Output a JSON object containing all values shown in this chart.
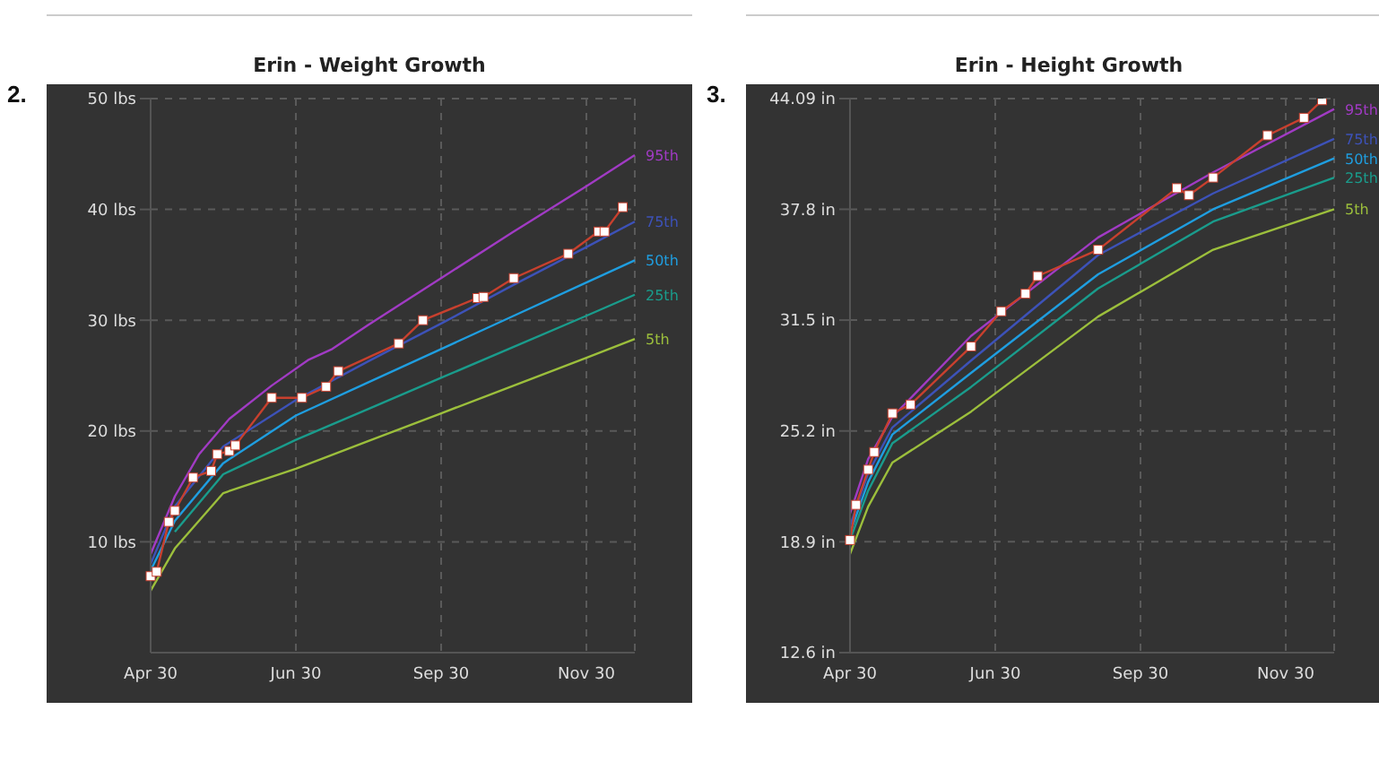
{
  "chart_data": [
    {
      "type": "line",
      "title": "Erin - Weight Growth",
      "annotations": [
        "2."
      ],
      "categories": [
        "Apr 30",
        null,
        null,
        null,
        null,
        null,
        null,
        null,
        null,
        null,
        null,
        null,
        null,
        null,
        null,
        null,
        null,
        null,
        null,
        null,
        null,
        null,
        null,
        null,
        "Jun 30",
        null,
        null,
        null,
        null,
        null,
        null,
        null,
        null,
        null,
        null,
        null,
        null,
        null,
        null,
        null,
        null,
        null,
        null,
        null,
        null,
        null,
        null,
        null,
        "Sep 30",
        null,
        null,
        null,
        null,
        null,
        null,
        null,
        null,
        null,
        null,
        null,
        null,
        null,
        null,
        null,
        null,
        null,
        null,
        null,
        null,
        null,
        null,
        null,
        "Nov 30",
        null,
        null,
        null,
        null,
        null,
        null,
        null,
        null
      ],
      "ylim": [
        0,
        50
      ],
      "yticks": [
        {
          "value": 10,
          "label": "10 lbs"
        },
        {
          "value": 20,
          "label": "20 lbs"
        },
        {
          "value": 30,
          "label": "30 lbs"
        },
        {
          "value": 40,
          "label": "40 lbs"
        },
        {
          "value": 50,
          "label": "50 lbs"
        }
      ],
      "grid": true,
      "line_style": "solid",
      "series": [
        {
          "name": "95th",
          "color": "#a13bc4",
          "marker": "none",
          "values": [
            8.9,
            null,
            null,
            null,
            14.1,
            null,
            null,
            null,
            17.9,
            null,
            null,
            null,
            null,
            21.1,
            null,
            null,
            null,
            null,
            null,
            null,
            24.1,
            null,
            null,
            null,
            null,
            null,
            26.4,
            null,
            null,
            null,
            27.4,
            null,
            null,
            null,
            null,
            null,
            29.6,
            null,
            null,
            null,
            null,
            null,
            null,
            null,
            null,
            null,
            null,
            null,
            33.8,
            null,
            null,
            null,
            null,
            null,
            null,
            null,
            null,
            null,
            null,
            null,
            38.0,
            null,
            null,
            null,
            null,
            null,
            null,
            null,
            null,
            null,
            null,
            null,
            42.1,
            null,
            null,
            null,
            null,
            null,
            null,
            null,
            44.9
          ]
        },
        {
          "name": "75th",
          "color": "#3d52b8",
          "marker": "none",
          "values": [
            8.0,
            null,
            null,
            null,
            13.2,
            null,
            null,
            null,
            null,
            null,
            null,
            null,
            18.6,
            null,
            null,
            null,
            null,
            null,
            null,
            null,
            null,
            null,
            null,
            null,
            22.8,
            null,
            null,
            null,
            null,
            null,
            null,
            null,
            null,
            null,
            null,
            null,
            26.3,
            null,
            null,
            null,
            null,
            null,
            null,
            null,
            null,
            null,
            null,
            null,
            29.7,
            null,
            null,
            null,
            null,
            null,
            null,
            null,
            null,
            null,
            null,
            null,
            33.2,
            null,
            null,
            null,
            null,
            null,
            null,
            null,
            null,
            null,
            null,
            null,
            36.6,
            null,
            null,
            null,
            null,
            null,
            null,
            null,
            38.9
          ]
        },
        {
          "name": "50th",
          "color": "#1f9ee0",
          "marker": "none",
          "values": [
            7.4,
            null,
            null,
            null,
            11.9,
            null,
            null,
            null,
            null,
            null,
            null,
            null,
            17.1,
            null,
            null,
            null,
            null,
            null,
            null,
            null,
            null,
            null,
            null,
            null,
            21.4,
            null,
            null,
            null,
            null,
            null,
            null,
            null,
            null,
            null,
            null,
            null,
            24.4,
            null,
            null,
            null,
            null,
            null,
            null,
            null,
            null,
            null,
            null,
            null,
            27.4,
            null,
            null,
            null,
            null,
            null,
            null,
            null,
            null,
            null,
            null,
            null,
            30.4,
            null,
            null,
            null,
            null,
            null,
            null,
            null,
            null,
            null,
            null,
            null,
            33.4,
            null,
            null,
            null,
            null,
            null,
            null,
            null,
            35.4
          ]
        },
        {
          "name": "25th",
          "color": "#1a9c8c",
          "marker": "none",
          "values": [
            null,
            null,
            null,
            null,
            10.9,
            null,
            null,
            null,
            null,
            null,
            null,
            null,
            16.1,
            null,
            null,
            null,
            null,
            null,
            null,
            null,
            null,
            null,
            null,
            null,
            19.2,
            null,
            null,
            null,
            null,
            null,
            null,
            null,
            null,
            null,
            null,
            null,
            22.0,
            null,
            null,
            null,
            null,
            null,
            null,
            null,
            null,
            null,
            null,
            null,
            24.8,
            null,
            null,
            null,
            null,
            null,
            null,
            null,
            null,
            null,
            null,
            null,
            27.6,
            null,
            null,
            null,
            null,
            null,
            null,
            null,
            null,
            null,
            null,
            null,
            30.4,
            null,
            null,
            null,
            null,
            null,
            null,
            null,
            32.3
          ]
        },
        {
          "name": "5th",
          "color": "#9cbf3c",
          "marker": "none",
          "values": [
            5.6,
            null,
            null,
            null,
            9.4,
            null,
            null,
            null,
            null,
            null,
            null,
            null,
            14.4,
            null,
            null,
            null,
            null,
            null,
            null,
            null,
            null,
            null,
            null,
            null,
            16.6,
            null,
            null,
            null,
            null,
            null,
            null,
            null,
            null,
            null,
            null,
            null,
            19.1,
            null,
            null,
            null,
            null,
            null,
            null,
            null,
            null,
            null,
            null,
            null,
            21.6,
            null,
            null,
            null,
            null,
            null,
            null,
            null,
            null,
            null,
            null,
            null,
            24.1,
            null,
            null,
            null,
            null,
            null,
            null,
            null,
            null,
            null,
            null,
            null,
            26.6,
            null,
            null,
            null,
            null,
            null,
            null,
            null,
            28.3
          ]
        },
        {
          "color": "#c8402e",
          "marker": "square",
          "values": [
            6.9,
            7.3,
            null,
            11.8,
            12.8,
            null,
            null,
            15.8,
            null,
            null,
            16.4,
            17.9,
            null,
            18.2,
            18.7,
            null,
            null,
            null,
            null,
            null,
            23.0,
            null,
            null,
            null,
            null,
            23.0,
            null,
            null,
            null,
            24.0,
            null,
            25.4,
            null,
            null,
            null,
            null,
            null,
            null,
            null,
            null,
            null,
            27.9,
            null,
            null,
            null,
            30.0,
            null,
            null,
            null,
            null,
            null,
            null,
            null,
            null,
            32.0,
            32.1,
            null,
            null,
            null,
            null,
            33.8,
            null,
            null,
            null,
            null,
            null,
            null,
            null,
            null,
            36.0,
            null,
            null,
            null,
            null,
            38.0,
            38.0,
            null,
            null,
            40.2,
            null,
            null
          ]
        }
      ]
    },
    {
      "type": "line",
      "title": "Erin - Height Growth",
      "annotations": [
        "3."
      ],
      "categories": [
        "Apr 30",
        null,
        null,
        null,
        null,
        null,
        null,
        null,
        null,
        null,
        null,
        null,
        null,
        null,
        null,
        null,
        null,
        null,
        null,
        null,
        null,
        null,
        null,
        null,
        "Jun 30",
        null,
        null,
        null,
        null,
        null,
        null,
        null,
        null,
        null,
        null,
        null,
        null,
        null,
        null,
        null,
        null,
        null,
        null,
        null,
        null,
        null,
        null,
        null,
        "Sep 30",
        null,
        null,
        null,
        null,
        null,
        null,
        null,
        null,
        null,
        null,
        null,
        null,
        null,
        null,
        null,
        null,
        null,
        null,
        null,
        null,
        null,
        null,
        null,
        "Nov 30",
        null,
        null,
        null,
        null,
        null,
        null,
        null,
        null
      ],
      "ylim": [
        12.6,
        44.09
      ],
      "yticks": [
        {
          "value": 12.6,
          "label": "12.6 in"
        },
        {
          "value": 18.9,
          "label": "18.9 in"
        },
        {
          "value": 25.2,
          "label": "25.2 in"
        },
        {
          "value": 31.5,
          "label": "31.5 in"
        },
        {
          "value": 37.8,
          "label": "37.8 in"
        },
        {
          "value": 44.09,
          "label": "44.09 in"
        }
      ],
      "grid": true,
      "line_style": "solid",
      "series": [
        {
          "name": "95th",
          "color": "#a13bc4",
          "marker": "none",
          "values": [
            20.5,
            null,
            null,
            23.6,
            null,
            null,
            null,
            26.0,
            null,
            null,
            null,
            null,
            null,
            null,
            null,
            null,
            null,
            null,
            null,
            null,
            30.6,
            null,
            null,
            null,
            null,
            null,
            null,
            null,
            null,
            null,
            null,
            null,
            null,
            null,
            null,
            null,
            null,
            null,
            null,
            null,
            null,
            36.2,
            null,
            null,
            null,
            null,
            null,
            null,
            null,
            null,
            null,
            null,
            null,
            null,
            null,
            null,
            null,
            null,
            null,
            null,
            39.9,
            null,
            null,
            null,
            null,
            null,
            null,
            null,
            null,
            null,
            null,
            null,
            null,
            null,
            null,
            null,
            null,
            null,
            null,
            null,
            43.5
          ]
        },
        {
          "name": "75th",
          "color": "#3d52b8",
          "marker": "none",
          "values": [
            19.8,
            null,
            null,
            22.8,
            null,
            null,
            null,
            25.4,
            null,
            null,
            null,
            null,
            null,
            null,
            null,
            null,
            null,
            null,
            null,
            null,
            29.2,
            null,
            null,
            null,
            null,
            null,
            null,
            null,
            null,
            null,
            null,
            null,
            null,
            null,
            null,
            null,
            null,
            null,
            null,
            null,
            null,
            35.2,
            null,
            null,
            null,
            null,
            null,
            null,
            null,
            null,
            null,
            null,
            null,
            null,
            null,
            null,
            null,
            null,
            null,
            null,
            38.7,
            null,
            null,
            null,
            null,
            null,
            null,
            null,
            null,
            null,
            null,
            null,
            null,
            null,
            null,
            null,
            null,
            null,
            null,
            null,
            41.8
          ]
        },
        {
          "name": "50th",
          "color": "#1f9ee0",
          "marker": "none",
          "values": [
            19.4,
            null,
            null,
            22.3,
            null,
            null,
            null,
            25.0,
            null,
            null,
            null,
            null,
            null,
            null,
            null,
            null,
            null,
            null,
            null,
            null,
            28.5,
            null,
            null,
            null,
            null,
            null,
            null,
            null,
            null,
            null,
            null,
            null,
            null,
            null,
            null,
            null,
            null,
            null,
            null,
            null,
            null,
            34.1,
            null,
            null,
            null,
            null,
            null,
            null,
            null,
            null,
            null,
            null,
            null,
            null,
            null,
            null,
            null,
            null,
            null,
            null,
            37.8,
            null,
            null,
            null,
            null,
            null,
            null,
            null,
            null,
            null,
            null,
            null,
            null,
            null,
            null,
            null,
            null,
            null,
            null,
            null,
            40.7
          ]
        },
        {
          "name": "25th",
          "color": "#1a9c8c",
          "marker": "none",
          "values": [
            19.0,
            null,
            null,
            21.8,
            null,
            null,
            null,
            24.5,
            null,
            null,
            null,
            null,
            null,
            null,
            null,
            null,
            null,
            null,
            null,
            null,
            27.7,
            null,
            null,
            null,
            null,
            null,
            null,
            null,
            null,
            null,
            null,
            null,
            null,
            null,
            null,
            null,
            null,
            null,
            null,
            null,
            null,
            33.3,
            null,
            null,
            null,
            null,
            null,
            null,
            null,
            null,
            null,
            null,
            null,
            null,
            null,
            null,
            null,
            null,
            null,
            null,
            37.1,
            null,
            null,
            null,
            null,
            null,
            null,
            null,
            null,
            null,
            null,
            null,
            null,
            null,
            null,
            null,
            null,
            null,
            null,
            null,
            39.6
          ]
        },
        {
          "name": "5th",
          "color": "#9cbf3c",
          "marker": "none",
          "values": [
            18.2,
            null,
            null,
            20.9,
            null,
            null,
            null,
            23.4,
            null,
            null,
            null,
            null,
            null,
            null,
            null,
            null,
            null,
            null,
            null,
            null,
            26.3,
            null,
            null,
            null,
            null,
            null,
            null,
            null,
            null,
            null,
            null,
            null,
            null,
            null,
            null,
            null,
            null,
            null,
            null,
            null,
            null,
            31.7,
            null,
            null,
            null,
            null,
            null,
            null,
            null,
            null,
            null,
            null,
            null,
            null,
            null,
            null,
            null,
            null,
            null,
            null,
            35.5,
            null,
            null,
            null,
            null,
            null,
            null,
            null,
            null,
            null,
            null,
            null,
            null,
            null,
            null,
            null,
            null,
            null,
            null,
            null,
            37.8
          ]
        },
        {
          "color": "#c8402e",
          "marker": "square",
          "values": [
            19.0,
            21.0,
            null,
            23.0,
            24.0,
            null,
            null,
            26.2,
            null,
            null,
            26.7,
            null,
            null,
            null,
            null,
            null,
            null,
            null,
            null,
            null,
            30.0,
            null,
            null,
            null,
            null,
            32.0,
            null,
            null,
            null,
            33.0,
            null,
            34.0,
            null,
            null,
            null,
            null,
            null,
            null,
            null,
            null,
            null,
            35.5,
            null,
            null,
            null,
            null,
            null,
            null,
            null,
            null,
            null,
            null,
            null,
            null,
            39.0,
            null,
            38.6,
            null,
            null,
            null,
            39.6,
            null,
            null,
            null,
            null,
            null,
            null,
            null,
            null,
            42.0,
            null,
            null,
            null,
            null,
            null,
            43.0,
            null,
            null,
            44.0,
            null,
            null
          ]
        }
      ]
    }
  ]
}
